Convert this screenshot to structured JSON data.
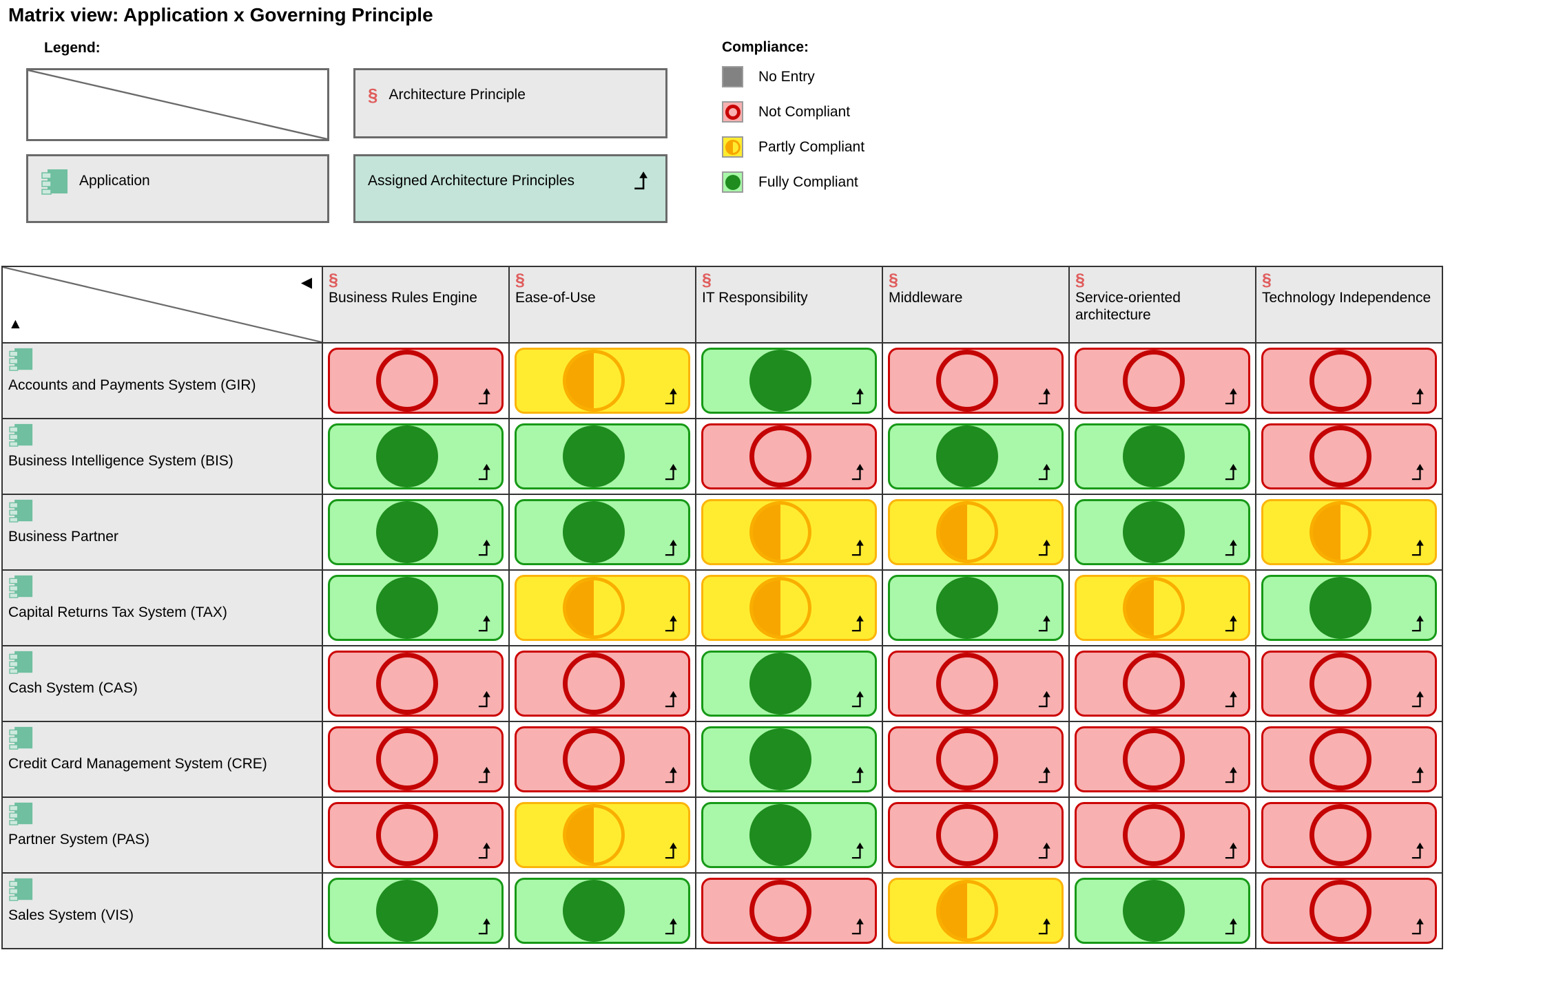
{
  "page_title": "Matrix view: Application x Governing Principle",
  "legend": {
    "title": "Legend:",
    "architecture_principle": "Architecture Principle",
    "application": "Application",
    "assigned_architecture_principles": "Assigned Architecture Principles"
  },
  "compliance": {
    "title": "Compliance:",
    "items": [
      {
        "key": "no-entry",
        "label": "No Entry"
      },
      {
        "key": "not-compliant",
        "label": "Not Compliant"
      },
      {
        "key": "partly-compliant",
        "label": "Partly Compliant"
      },
      {
        "key": "fully-compliant",
        "label": "Fully Compliant"
      }
    ]
  },
  "colors": {
    "not_compliant_bg": "#f8b0b0",
    "not_compliant_border": "#c80000",
    "partly_compliant_bg": "#ffec30",
    "partly_compliant_border": "#fbb40a",
    "partly_compliant_fill": "#f7a600",
    "fully_compliant_bg": "#a9f7a9",
    "fully_compliant_border": "#179917",
    "fully_compliant_fill": "#1e8c1e",
    "no_entry_fill": "#828282",
    "header_bg": "#e9e9e9",
    "assigned_bg": "#c4e4d9",
    "principle_icon": "#e05c5c",
    "application_icon": "#6fbfa0"
  },
  "matrix": {
    "columns": [
      "Business Rules Engine",
      "Ease-of-Use",
      "IT Responsibility",
      "Middleware",
      "Service-oriented architecture",
      "Technology Independence"
    ],
    "rows": [
      {
        "name": "Accounts and Payments System (GIR)",
        "values": [
          "not-compliant",
          "partly-compliant",
          "fully-compliant",
          "not-compliant",
          "not-compliant",
          "not-compliant"
        ]
      },
      {
        "name": "Business Intelligence System (BIS)",
        "values": [
          "fully-compliant",
          "fully-compliant",
          "not-compliant",
          "fully-compliant",
          "fully-compliant",
          "not-compliant"
        ]
      },
      {
        "name": "Business Partner",
        "values": [
          "fully-compliant",
          "fully-compliant",
          "partly-compliant",
          "partly-compliant",
          "fully-compliant",
          "partly-compliant"
        ]
      },
      {
        "name": "Capital Returns Tax System (TAX)",
        "values": [
          "fully-compliant",
          "partly-compliant",
          "partly-compliant",
          "fully-compliant",
          "partly-compliant",
          "fully-compliant"
        ]
      },
      {
        "name": "Cash System (CAS)",
        "values": [
          "not-compliant",
          "not-compliant",
          "fully-compliant",
          "not-compliant",
          "not-compliant",
          "not-compliant"
        ]
      },
      {
        "name": "Credit Card Management System (CRE)",
        "values": [
          "not-compliant",
          "not-compliant",
          "fully-compliant",
          "not-compliant",
          "not-compliant",
          "not-compliant"
        ]
      },
      {
        "name": "Partner System (PAS)",
        "values": [
          "not-compliant",
          "partly-compliant",
          "fully-compliant",
          "not-compliant",
          "not-compliant",
          "not-compliant"
        ]
      },
      {
        "name": "Sales System (VIS)",
        "values": [
          "fully-compliant",
          "fully-compliant",
          "not-compliant",
          "partly-compliant",
          "fully-compliant",
          "not-compliant"
        ]
      }
    ]
  }
}
